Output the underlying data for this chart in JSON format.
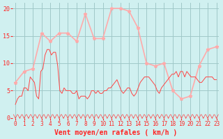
{
  "title": "",
  "xlabel": "Vent moyen/en rafales ( km/h )",
  "ylabel": "",
  "bg_color": "#d0f0f0",
  "grid_color": "#a0c8c8",
  "line1_color": "#ff4444",
  "line2_color": "#ffaaaa",
  "marker_color": "#ff4444",
  "marker2_color": "#ffaaaa",
  "ylim": [
    0,
    21
  ],
  "yticks": [
    0,
    5,
    10,
    15,
    20
  ],
  "xlabel_color": "#ff2222",
  "tick_color": "#ff2222",
  "hours": [
    0,
    1,
    2,
    3,
    4,
    5,
    6,
    7,
    8,
    9,
    10,
    11,
    12,
    13,
    14,
    15,
    16,
    17,
    18,
    19,
    20,
    21,
    22,
    23
  ],
  "wind_avg": [
    2.5,
    3.5,
    4.0,
    4.0,
    5.5,
    5.5,
    5.0,
    7.5,
    7.0,
    6.5,
    4.0,
    3.5,
    8.5,
    9.0,
    11.5,
    12.5,
    12.5,
    11.5,
    12.0,
    12.0,
    9.5,
    5.0,
    4.5,
    5.5,
    5.0,
    5.0,
    5.0,
    4.5,
    4.5,
    5.0,
    3.5,
    4.0,
    4.0,
    4.0,
    3.5,
    4.0,
    5.0,
    5.0,
    4.5,
    5.0,
    4.5,
    4.5,
    5.0,
    5.0,
    5.5,
    5.5,
    6.0,
    6.5,
    7.0,
    6.0,
    5.0,
    4.5,
    5.0,
    5.5,
    5.5,
    4.5,
    4.0,
    4.5,
    5.5,
    6.5,
    7.0,
    7.5,
    7.5,
    7.5,
    7.0,
    6.5,
    6.0,
    5.0,
    4.5,
    5.5,
    6.0,
    6.5,
    7.0,
    7.5,
    8.0,
    8.0,
    8.5,
    7.5,
    8.5,
    8.5,
    7.5,
    8.5,
    8.0,
    7.5,
    7.5,
    7.5,
    7.0,
    6.5,
    6.5,
    7.0,
    7.5,
    7.5,
    7.5,
    7.5,
    7.0,
    7.0
  ],
  "wind_gust_hours": [
    0,
    1,
    2,
    3,
    4,
    5,
    6,
    7,
    8,
    9,
    10,
    11,
    12,
    13,
    14,
    15,
    16,
    17,
    18,
    19,
    20,
    21,
    22,
    23
  ],
  "wind_gust": [
    6.5,
    8.5,
    9.0,
    15.5,
    14.0,
    15.5,
    15.5,
    14.0,
    19.0,
    14.5,
    14.5,
    20.0,
    20.0,
    19.5,
    16.5,
    10.0,
    9.5,
    10.0,
    5.0,
    3.5,
    4.0,
    9.5,
    12.5,
    13.0
  ],
  "wind_dir_x": [
    0,
    0.5,
    1,
    1.5,
    2,
    2.5,
    3,
    3.5,
    4,
    4.5,
    5,
    5.5,
    6,
    6.5,
    7,
    7.5,
    8,
    8.5,
    9,
    9.5,
    10,
    10.5,
    11,
    11.5,
    12,
    12.5,
    13,
    13.5,
    14,
    14.5,
    15,
    15.5,
    16,
    16.5,
    17,
    17.5,
    18,
    18.5,
    19,
    19.5,
    20,
    20.5,
    21,
    21.5,
    22,
    22.5,
    23
  ]
}
